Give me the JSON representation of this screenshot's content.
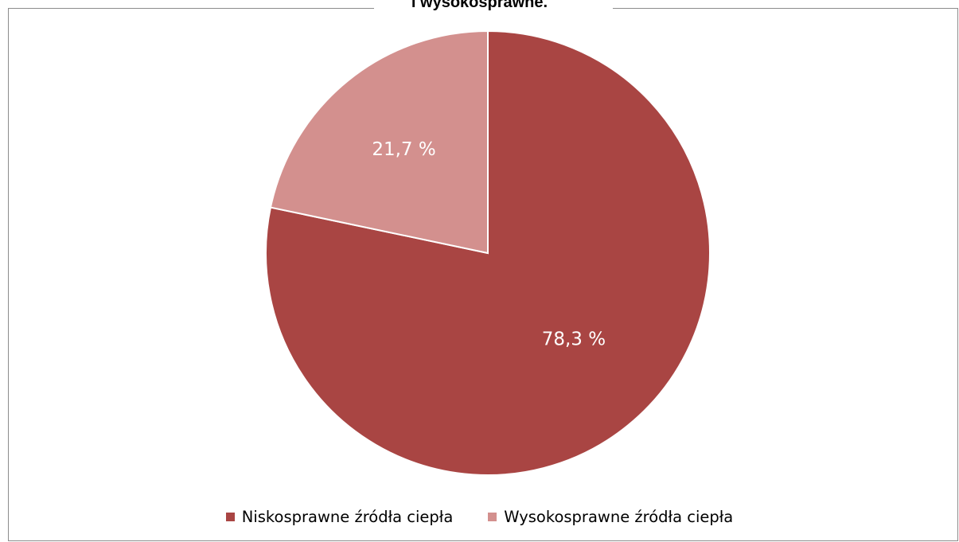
{
  "chart_data": {
    "type": "pie",
    "title": "i wysokosprawne.",
    "slices": [
      {
        "name": "Niskosprawne źródła ciepła",
        "value": 78.3,
        "label": "78,3 %",
        "color": "#a94543"
      },
      {
        "name": "Wysokosprawne źródła ciepła",
        "value": 21.7,
        "label": "21,7 %",
        "color": "#d3908e"
      }
    ],
    "legend": {
      "placement": "bottom",
      "items": [
        {
          "label": "Niskosprawne źródła ciepła",
          "color": "#a94543"
        },
        {
          "label": "Wysokosprawne źródła ciepła",
          "color": "#d3908e"
        }
      ]
    }
  }
}
